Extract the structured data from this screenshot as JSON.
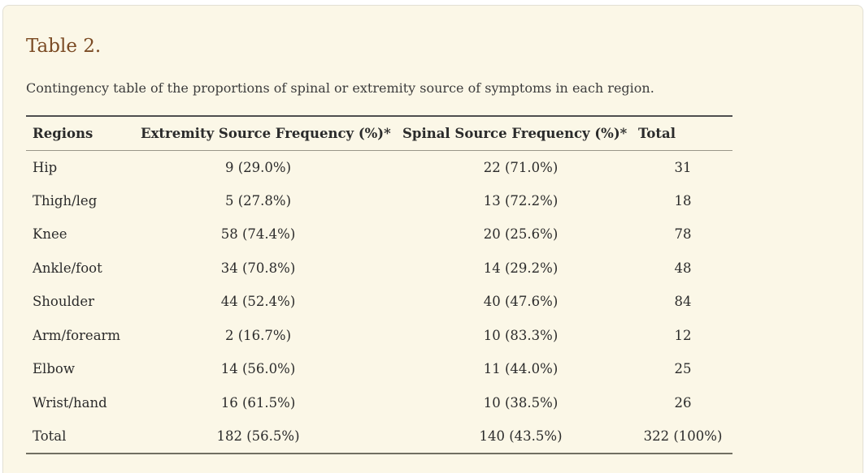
{
  "theme": {
    "panel_background": "#fbf7e7",
    "panel_border": "#e2dfd4",
    "title_color": "#7b4b24",
    "text_color": "#2b2b2b",
    "caption_color": "#3c3c3c",
    "rule_top_color": "#4e4e4e",
    "rule_header_bottom_color": "#999689",
    "rule_table_bottom_color": "#716f62"
  },
  "table": {
    "title": "Table 2.",
    "caption": "Contingency table of the proportions of spinal or extremity source of symptoms in each region.",
    "columns": [
      "Regions",
      "Extremity Source Frequency (%)*",
      "Spinal Source Frequency (%)*",
      "Total"
    ],
    "rows": [
      [
        "Hip",
        "9 (29.0%)",
        "22 (71.0%)",
        "31"
      ],
      [
        "Thigh/leg",
        "5 (27.8%)",
        "13 (72.2%)",
        "18"
      ],
      [
        "Knee",
        "58 (74.4%)",
        "20 (25.6%)",
        "78"
      ],
      [
        "Ankle/foot",
        "34 (70.8%)",
        "14 (29.2%)",
        "48"
      ],
      [
        "Shoulder",
        "44 (52.4%)",
        "40 (47.6%)",
        "84"
      ],
      [
        "Arm/forearm",
        "2 (16.7%)",
        "10 (83.3%)",
        "12"
      ],
      [
        "Elbow",
        "14 (56.0%)",
        "11 (44.0%)",
        "25"
      ],
      [
        "Wrist/hand",
        "16 (61.5%)",
        "10 (38.5%)",
        "26"
      ],
      [
        "Total",
        "182 (56.5%)",
        "140 (43.5%)",
        "322 (100%)"
      ]
    ]
  }
}
